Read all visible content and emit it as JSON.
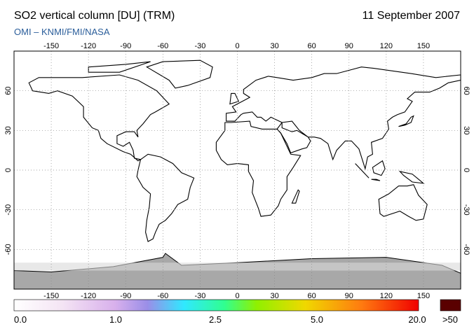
{
  "header": {
    "title": "SO2 vertical column [DU] (TRM)",
    "date": "11 September 2007",
    "source": "OMI  –  KNMI/FMI/NASA"
  },
  "map": {
    "lon_ticks": [
      -150,
      -120,
      -90,
      -60,
      -30,
      0,
      30,
      60,
      90,
      120,
      150
    ],
    "lat_ticks": [
      60,
      30,
      0,
      -30,
      -60
    ]
  },
  "colorbar": {
    "labels": [
      "0.0",
      "1.0",
      "2.5",
      "5.0",
      "20.0"
    ],
    "overflow": ">50"
  }
}
